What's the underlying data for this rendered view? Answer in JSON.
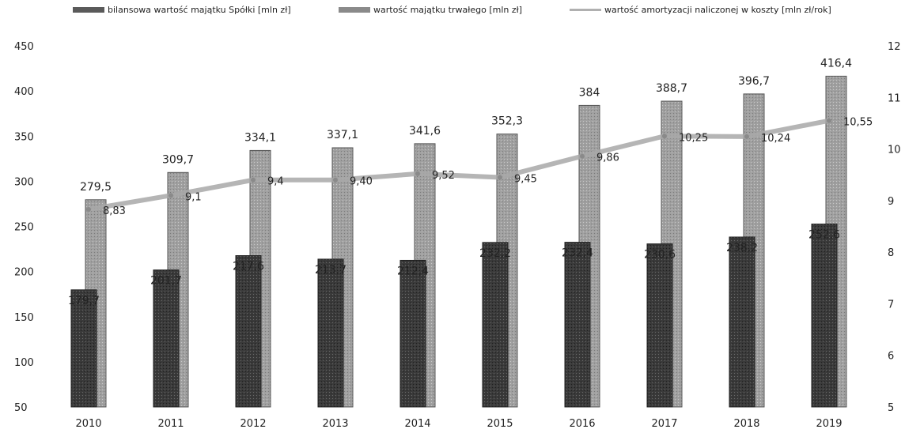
{
  "chart_data": {
    "type": "bar",
    "categories": [
      "2010",
      "2011",
      "2012",
      "2013",
      "2014",
      "2015",
      "2016",
      "2017",
      "2018",
      "2019"
    ],
    "series": [
      {
        "name": "bilansowa wartość majątku Spółki [mln zł]",
        "kind": "bar",
        "axis": "left",
        "values": [
          279.5,
          309.7,
          334.1,
          337.1,
          341.6,
          352.3,
          384,
          388.7,
          396.7,
          416.4
        ],
        "labels": [
          "279,5",
          "309,7",
          "334,1",
          "337,1",
          "341,6",
          "352,3",
          "384",
          "388,7",
          "396,7",
          "416,4"
        ],
        "color": "#9a9a9a"
      },
      {
        "name": "wartość majątku trwałego [mln zł]",
        "kind": "bar",
        "axis": "left",
        "values": [
          179.7,
          201.7,
          217.6,
          213.7,
          212.4,
          232.2,
          232.4,
          230.6,
          238.2,
          252.6
        ],
        "labels": [
          "179,7",
          "201,7",
          "217,6",
          "213,7",
          "212,4",
          "232,2",
          "232,4",
          "230,6",
          "238,2",
          "252,6"
        ],
        "color": "#3c3c3c"
      },
      {
        "name": "wartość amortyzacji naliczonej w koszty [mln zł/rok]",
        "kind": "line",
        "axis": "right",
        "values": [
          8.83,
          9.1,
          9.4,
          9.4,
          9.52,
          9.45,
          9.86,
          10.25,
          10.24,
          10.55
        ],
        "labels": [
          "8,83",
          "9,1",
          "9,4",
          "9,40",
          "9,52",
          "9,45",
          "9,86",
          "10,25",
          "10,24",
          "10,55"
        ],
        "color": "#a8a8a8"
      }
    ],
    "y_left": {
      "min": 50,
      "max": 450,
      "ticks": [
        "50",
        "100",
        "150",
        "200",
        "250",
        "300",
        "350",
        "400",
        "450"
      ]
    },
    "y_right": {
      "min": 5,
      "max": 12,
      "ticks": [
        "5",
        "6",
        "7",
        "8",
        "9",
        "10",
        "11",
        "12"
      ]
    },
    "legend_position": "top",
    "grid": false
  }
}
